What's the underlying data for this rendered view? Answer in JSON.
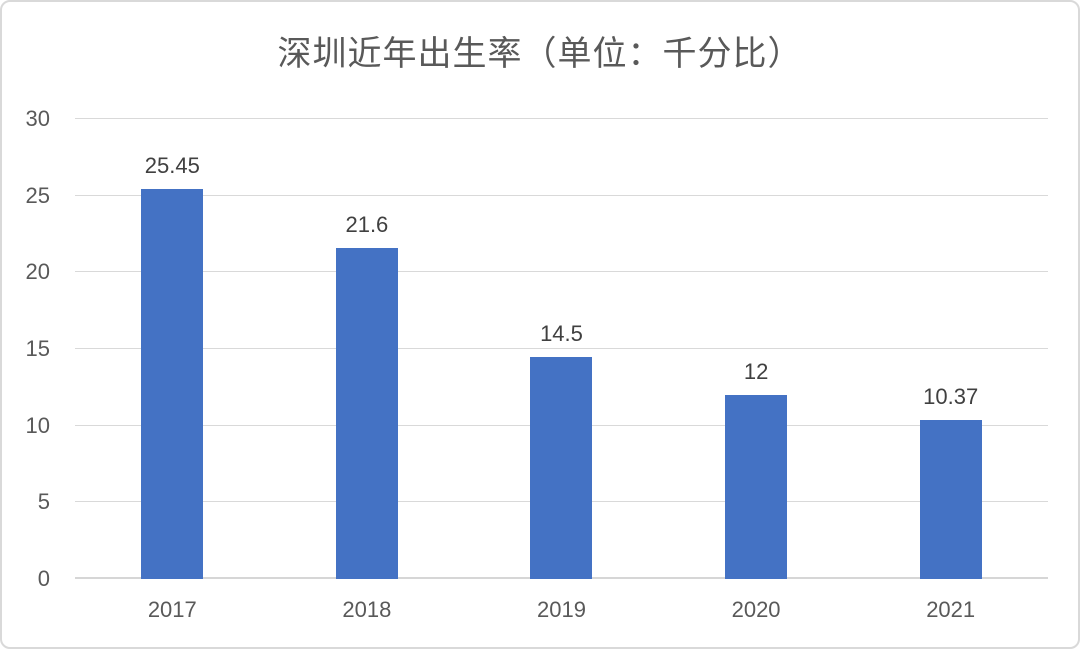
{
  "chart_data": {
    "type": "bar",
    "title": "深圳近年出生率（单位：千分比）",
    "categories": [
      "2017",
      "2018",
      "2019",
      "2020",
      "2021"
    ],
    "values": [
      25.45,
      21.6,
      14.5,
      12,
      10.37
    ],
    "value_labels": [
      "25.45",
      "21.6",
      "14.5",
      "12",
      "10.37"
    ],
    "xlabel": "",
    "ylabel": "",
    "ylim": [
      0,
      30
    ],
    "yticks": [
      0,
      5,
      10,
      15,
      20,
      25,
      30
    ],
    "grid": true,
    "legend": false,
    "colors": {
      "bar": "#4472C4",
      "gridline": "#d9d9d9",
      "axis_line": "#d6d6d6",
      "axis_text": "#595959",
      "value_text": "#404040",
      "title_text": "#595959",
      "frame_border": "#d9d9d9",
      "background": "#ffffff"
    }
  }
}
